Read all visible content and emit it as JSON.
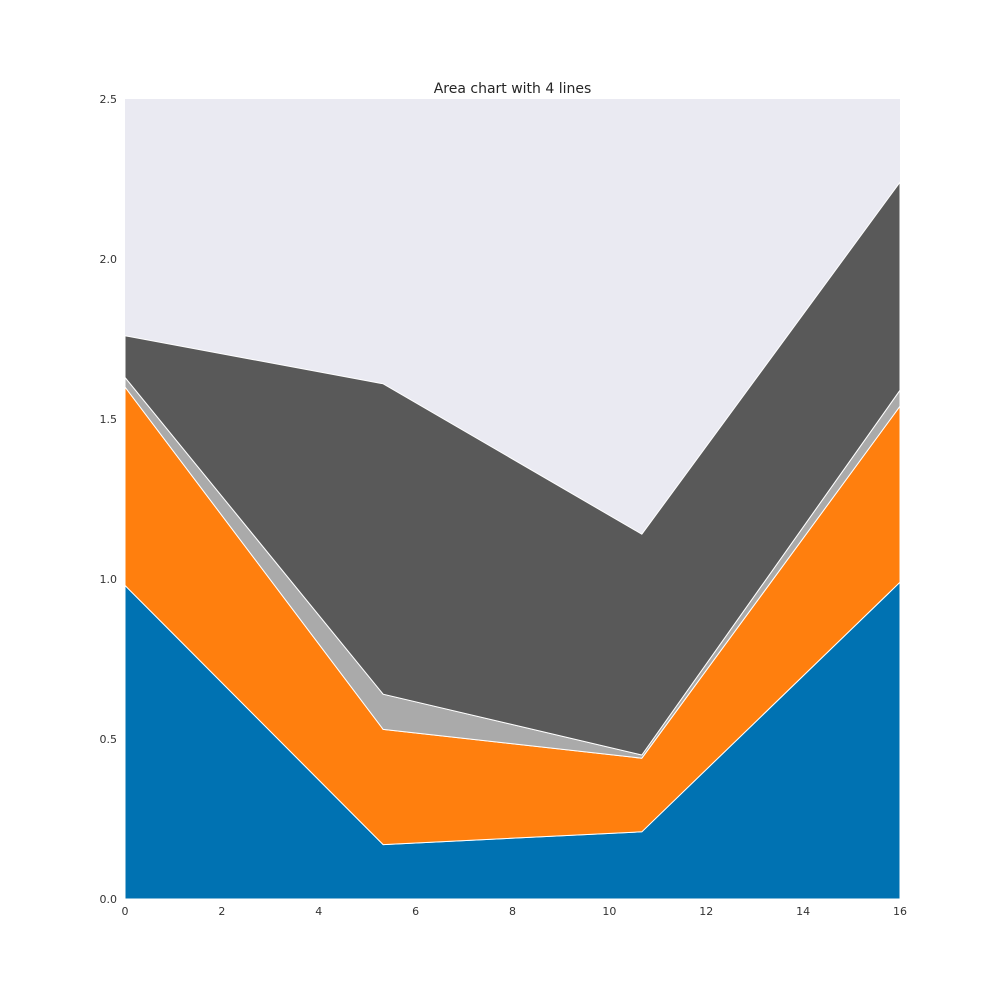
{
  "chart_data": {
    "type": "area",
    "stacked": true,
    "title": "Area chart with 4 lines",
    "xlabel": "",
    "ylabel": "",
    "xlim": [
      0,
      16
    ],
    "ylim": [
      0,
      2.5
    ],
    "x": [
      0,
      5.33,
      10.67,
      16
    ],
    "x_ticks": [
      0,
      2,
      4,
      6,
      8,
      10,
      12,
      14,
      16
    ],
    "x_tick_labels": [
      "0",
      "2",
      "4",
      "6",
      "8",
      "10",
      "12",
      "14",
      "16"
    ],
    "y_ticks": [
      0,
      0.5,
      1.0,
      1.5,
      2.0,
      2.5
    ],
    "y_tick_labels": [
      "0.0",
      "0.5",
      "1.0",
      "1.5",
      "2.0",
      "2.5"
    ],
    "grid": false,
    "legend": "none",
    "background_color": "#eaeaf2",
    "series": [
      {
        "color": "#0072b2",
        "values": [
          0.98,
          0.17,
          0.21,
          0.99
        ]
      },
      {
        "color": "#ff7f0e",
        "values": [
          0.62,
          0.36,
          0.23,
          0.55
        ]
      },
      {
        "color": "#aaaaaa",
        "values": [
          0.03,
          0.11,
          0.01,
          0.05
        ]
      },
      {
        "color": "#595959",
        "values": [
          0.13,
          0.97,
          0.69,
          0.65
        ]
      }
    ]
  }
}
